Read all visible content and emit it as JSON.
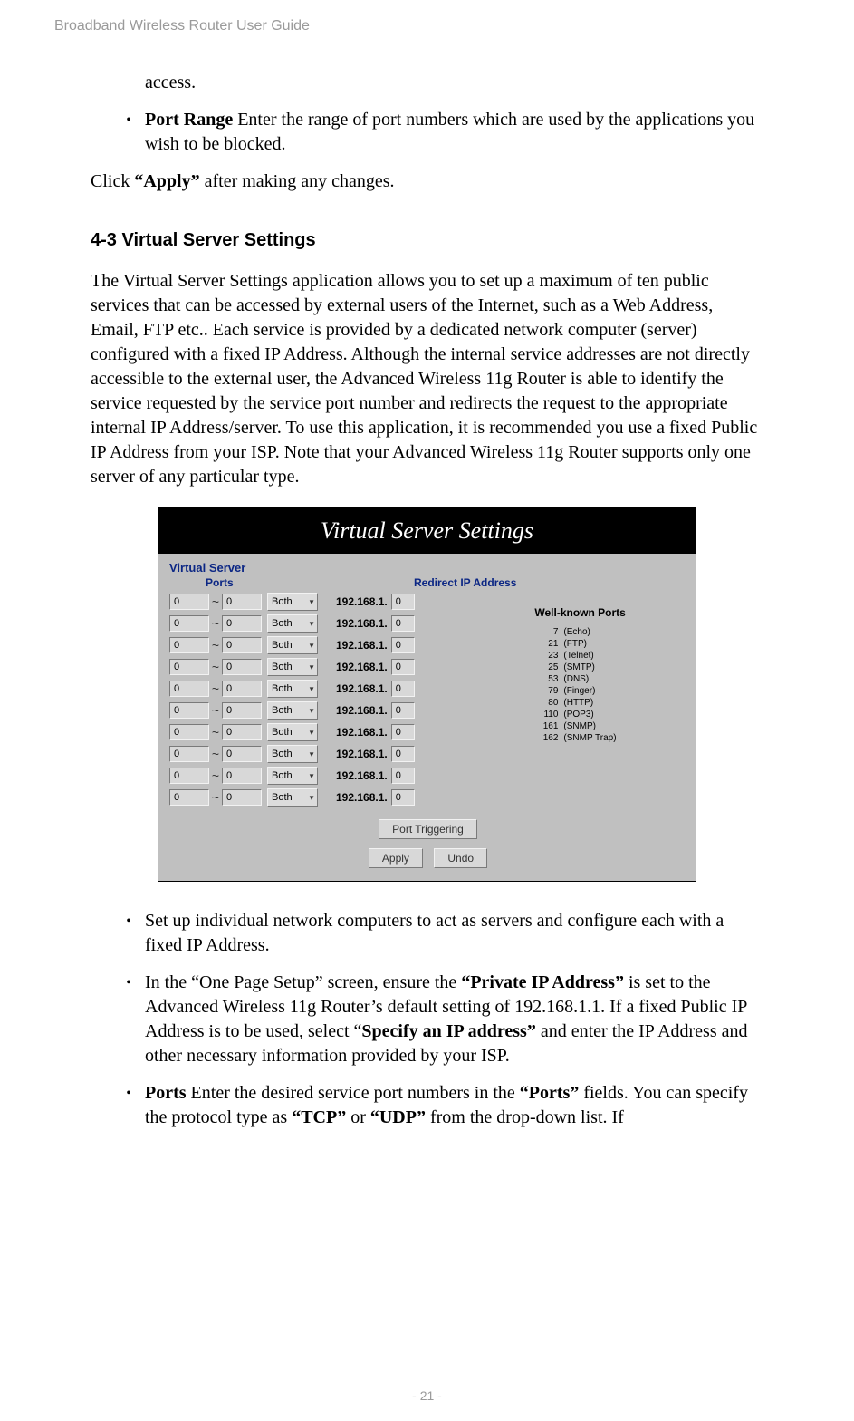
{
  "header": "Broadband Wireless Router User Guide",
  "footer": "- 21 -",
  "top_access": "access.",
  "bullet1": {
    "bold": "Port Range ",
    "rest": "Enter the range of port numbers which are used by the applications you wish to be blocked."
  },
  "click_apply": {
    "pre": "Click ",
    "bold": "“Apply”",
    "post": " after making any changes."
  },
  "section_heading": "4-3 Virtual Server Settings",
  "main_para": "The Virtual Server Settings application allows you to set up a maximum of ten public services that can be accessed by external users of the Internet, such as a Web Address, Email, FTP etc.. Each service is provided by a dedicated network computer (server) configured with a fixed IP Address. Although the internal service addresses are not directly accessible to the external user, the Advanced Wireless 11g Router is able to identify the service requested by the service port number and redirects the request to the appropriate internal IP Address/server. To use this application, it is recommended you use a fixed Public IP Address from your ISP. Note that your Advanced Wireless 11g Router supports only one server of any particular type.",
  "screenshot": {
    "title": "Virtual Server Settings",
    "group_label": "Virtual Server",
    "ports_header": "Ports",
    "redir_header": "Redirect IP Address",
    "row_count": 10,
    "port_value": "0",
    "select_value": "Both",
    "ip_prefix": "192.168.1.",
    "ip_last": "0",
    "side_title": "Well-known Ports",
    "side_ports": [
      {
        "n": "7",
        "t": "(Echo)"
      },
      {
        "n": "21",
        "t": "(FTP)"
      },
      {
        "n": "23",
        "t": "(Telnet)"
      },
      {
        "n": "25",
        "t": "(SMTP)"
      },
      {
        "n": "53",
        "t": "(DNS)"
      },
      {
        "n": "79",
        "t": "(Finger)"
      },
      {
        "n": "80",
        "t": "(HTTP)"
      },
      {
        "n": "110",
        "t": "(POP3)"
      },
      {
        "n": "161",
        "t": "(SNMP)"
      },
      {
        "n": "162",
        "t": "(SNMP Trap)"
      }
    ],
    "port_trigger_btn": "Port Triggering",
    "apply_btn": "Apply",
    "undo_btn": "Undo"
  },
  "bullet2": "Set up individual network computers to act as servers and configure each with a fixed IP Address.",
  "bullet3": {
    "p1": "In the “One Page Setup” screen, ensure the ",
    "b1": "“Private IP Address”",
    "p2": " is set to the Advanced Wireless 11g Router’s default setting of 192.168.1.1. If a fixed Public IP Address is to be used, select “",
    "b2": "Specify an IP address”",
    "p3": " and enter the IP Address and other necessary information provided by your ISP."
  },
  "bullet4": {
    "b1": "Ports ",
    "p1": "Enter the desired service port numbers in the ",
    "b2": "“Ports”",
    "p2": " fields. You can specify the protocol type as ",
    "b3": "“TCP”",
    "p3": " or ",
    "b4": "“UDP”",
    "p4": " from the drop-down list. If"
  }
}
